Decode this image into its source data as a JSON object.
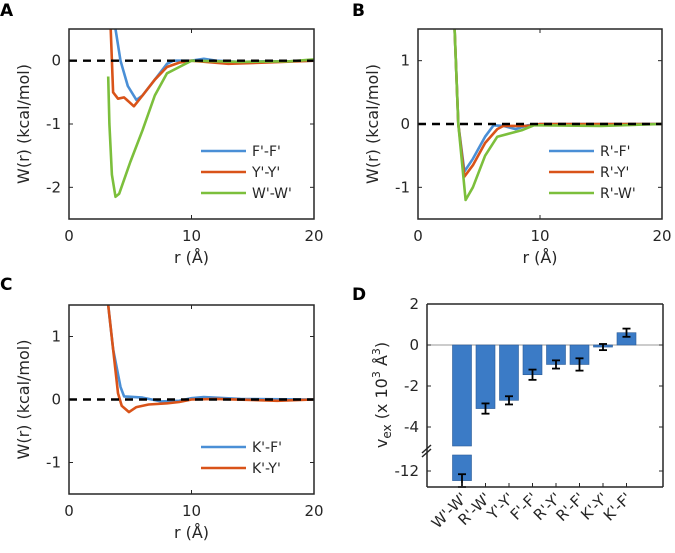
{
  "colors": {
    "blue": "#4a8fd6",
    "orange": "#d95319",
    "green": "#7cbf3c",
    "bar": "#3b7bc6"
  },
  "chart_data": [
    {
      "panel": "A",
      "type": "line",
      "xlabel": "r (Å)",
      "ylabel": "W(r) (kcal/mol)",
      "xlim": [
        0,
        20
      ],
      "ylim": [
        -2.5,
        0.5
      ],
      "xticks": [
        "0",
        "10",
        "20"
      ],
      "yticks": [
        "-2",
        "-1",
        "0"
      ],
      "reference_line": 0,
      "legend_position": "bottom-right",
      "series": [
        {
          "name": "F'-F'",
          "color": "blue",
          "x": [
            3.8,
            4.2,
            4.8,
            5.5,
            6,
            7,
            8,
            8.5,
            10,
            11,
            12,
            14,
            16,
            18,
            20
          ],
          "y": [
            0.5,
            0,
            -0.4,
            -0.62,
            -0.55,
            -0.3,
            -0.05,
            0,
            0,
            0.03,
            0,
            -0.02,
            -0.01,
            -0.01,
            0
          ]
        },
        {
          "name": "Y'-Y'",
          "color": "orange",
          "x": [
            3.4,
            3.6,
            4,
            4.5,
            5.3,
            6,
            7,
            8,
            9,
            10,
            13,
            16,
            20
          ],
          "y": [
            0.5,
            -0.5,
            -0.6,
            -0.58,
            -0.72,
            -0.55,
            -0.3,
            -0.1,
            -0.03,
            0,
            -0.05,
            -0.03,
            0
          ]
        },
        {
          "name": "W'-W'",
          "color": "green",
          "x": [
            3.2,
            3.3,
            3.5,
            3.8,
            4.1,
            5,
            6,
            7,
            8,
            9,
            10,
            14,
            18,
            20
          ],
          "y": [
            -0.25,
            -1.0,
            -1.8,
            -2.15,
            -2.1,
            -1.6,
            -1.1,
            -0.55,
            -0.2,
            -0.1,
            0,
            -0.02,
            -0.01,
            0.02
          ]
        }
      ]
    },
    {
      "panel": "B",
      "type": "line",
      "xlabel": "r (Å)",
      "ylabel": "W(r) (kcal/mol)",
      "xlim": [
        0,
        20
      ],
      "ylim": [
        -1.5,
        1.5
      ],
      "xticks": [
        "0",
        "10",
        "20"
      ],
      "yticks": [
        "-1",
        "0",
        "1"
      ],
      "reference_line": 0,
      "legend_position": "bottom-right",
      "series": [
        {
          "name": "R'-F'",
          "color": "blue",
          "x": [
            3,
            3.3,
            3.8,
            4.5,
            5.5,
            6.2,
            7,
            8,
            9,
            10,
            20
          ],
          "y": [
            1.5,
            0,
            -0.75,
            -0.55,
            -0.2,
            -0.02,
            -0.03,
            -0.08,
            -0.02,
            0,
            0
          ]
        },
        {
          "name": "R'-Y'",
          "color": "orange",
          "x": [
            3,
            3.3,
            3.8,
            4.5,
            5.5,
            6.5,
            7,
            9,
            10,
            20
          ],
          "y": [
            1.5,
            0,
            -0.83,
            -0.65,
            -0.3,
            -0.08,
            -0.03,
            -0.03,
            0,
            0
          ]
        },
        {
          "name": "R'-W'",
          "color": "green",
          "x": [
            3,
            3.3,
            3.9,
            4.5,
            5.5,
            6.5,
            7.5,
            8.5,
            9.5,
            10,
            15,
            20
          ],
          "y": [
            1.5,
            0,
            -1.2,
            -1.0,
            -0.5,
            -0.2,
            -0.15,
            -0.1,
            -0.02,
            -0.02,
            -0.03,
            0
          ]
        }
      ]
    },
    {
      "panel": "C",
      "type": "line",
      "xlabel": "r (Å)",
      "ylabel": "W(r) (kcal/mol)",
      "xlim": [
        0,
        20
      ],
      "ylim": [
        -1.5,
        1.5
      ],
      "xticks": [
        "0",
        "10",
        "20"
      ],
      "yticks": [
        "-1",
        "0",
        "1"
      ],
      "reference_line": 0,
      "legend_position": "bottom-right",
      "series": [
        {
          "name": "K'-F'",
          "color": "blue",
          "x": [
            3.2,
            3.6,
            4.2,
            4.5,
            6,
            7.5,
            9,
            10,
            11,
            14,
            20
          ],
          "y": [
            1.5,
            0.8,
            0.2,
            0.05,
            0.03,
            -0.03,
            -0.02,
            0.02,
            0.04,
            0.01,
            0
          ]
        },
        {
          "name": "K'-Y'",
          "color": "orange",
          "x": [
            3.2,
            3.6,
            4,
            4.3,
            4.9,
            5.5,
            6.5,
            8,
            9,
            10,
            12,
            17,
            20
          ],
          "y": [
            1.5,
            0.8,
            0.1,
            -0.1,
            -0.2,
            -0.12,
            -0.08,
            -0.06,
            -0.04,
            0,
            0.01,
            -0.02,
            0
          ]
        }
      ]
    },
    {
      "panel": "D",
      "type": "bar",
      "ylabel": {
        "main": "v",
        "sub": "ex",
        "mid": " (x 10",
        "sup1": "3",
        "unit": " Å",
        "sup2": "3",
        "end": ")"
      },
      "ylim": [
        -13,
        2
      ],
      "axis_break": [
        -4.9,
        -11
      ],
      "yticks": [
        "-12",
        "-4",
        "-2",
        "0",
        "2"
      ],
      "categories": [
        "W'-W'",
        "R'-W'",
        "Y'-Y'",
        "F'-F'",
        "R'-Y'",
        "R'-F'",
        "K'-Y'",
        "K'-F'"
      ],
      "values": [
        -12.6,
        -3.1,
        -2.7,
        -1.45,
        -0.95,
        -0.95,
        -0.1,
        0.6
      ],
      "errors": [
        0.4,
        0.25,
        0.2,
        0.25,
        0.2,
        0.3,
        0.15,
        0.2
      ]
    }
  ]
}
